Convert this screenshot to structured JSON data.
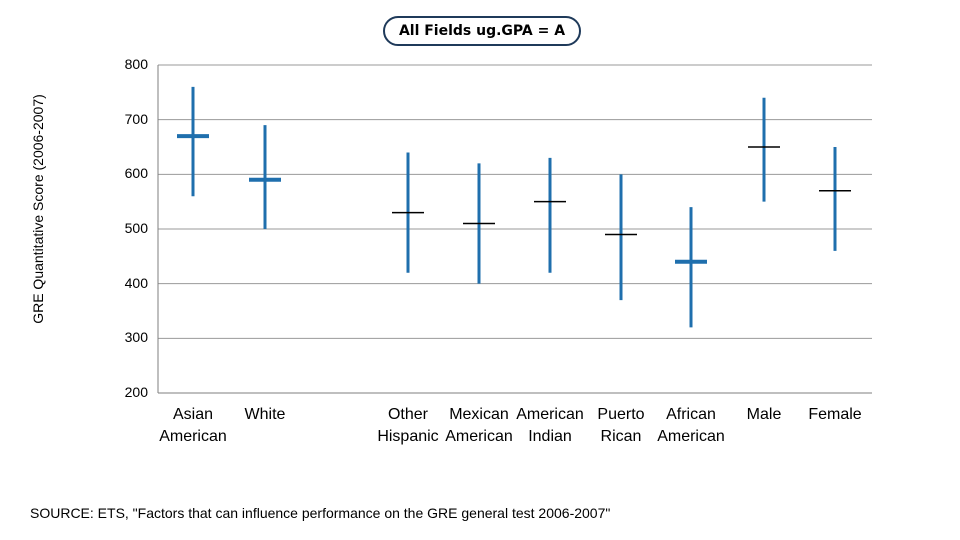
{
  "chart_data": {
    "type": "range",
    "title": "All Fields ug.GPA = A",
    "ylabel": "GRE Quantitative Score (2006-2007)",
    "xlabel": "",
    "ylim": [
      200,
      800
    ],
    "yticks": [
      "800",
      "700",
      "600",
      "500",
      "400",
      "300",
      "200"
    ],
    "grid": true,
    "categories": [
      {
        "label_lines": [
          "Asian",
          "American"
        ],
        "low": 560,
        "high": 760,
        "mean": 670,
        "group": 0,
        "emphasis": true
      },
      {
        "label_lines": [
          "White",
          ""
        ],
        "low": 500,
        "high": 690,
        "mean": 590,
        "group": 0,
        "emphasis": true
      },
      {
        "label_lines": [
          "Other",
          "Hispanic"
        ],
        "low": 420,
        "high": 640,
        "mean": 530,
        "group": 1,
        "emphasis": false
      },
      {
        "label_lines": [
          "Mexican",
          "American"
        ],
        "low": 400,
        "high": 620,
        "mean": 510,
        "group": 1,
        "emphasis": false
      },
      {
        "label_lines": [
          "American",
          "Indian"
        ],
        "low": 420,
        "high": 630,
        "mean": 550,
        "group": 1,
        "emphasis": false
      },
      {
        "label_lines": [
          "Puerto",
          "Rican"
        ],
        "low": 370,
        "high": 600,
        "mean": 490,
        "group": 1,
        "emphasis": false
      },
      {
        "label_lines": [
          "African",
          "American"
        ],
        "low": 320,
        "high": 540,
        "mean": 440,
        "group": 1,
        "emphasis": true
      },
      {
        "label_lines": [
          "Male",
          ""
        ],
        "low": 550,
        "high": 740,
        "mean": 650,
        "group": 2,
        "emphasis": false
      },
      {
        "label_lines": [
          "Female",
          ""
        ],
        "low": 460,
        "high": 650,
        "mean": 570,
        "group": 2,
        "emphasis": false
      }
    ],
    "colors": {
      "range": "#1f6fad",
      "mean_emphasis": "#1f6fad",
      "mean_default": "#000000",
      "grid": "#9a9a9a",
      "axis": "#7f7f7f"
    }
  },
  "source": "SOURCE: ETS, \"Factors that can influence performance on the GRE general test 2006-2007\""
}
